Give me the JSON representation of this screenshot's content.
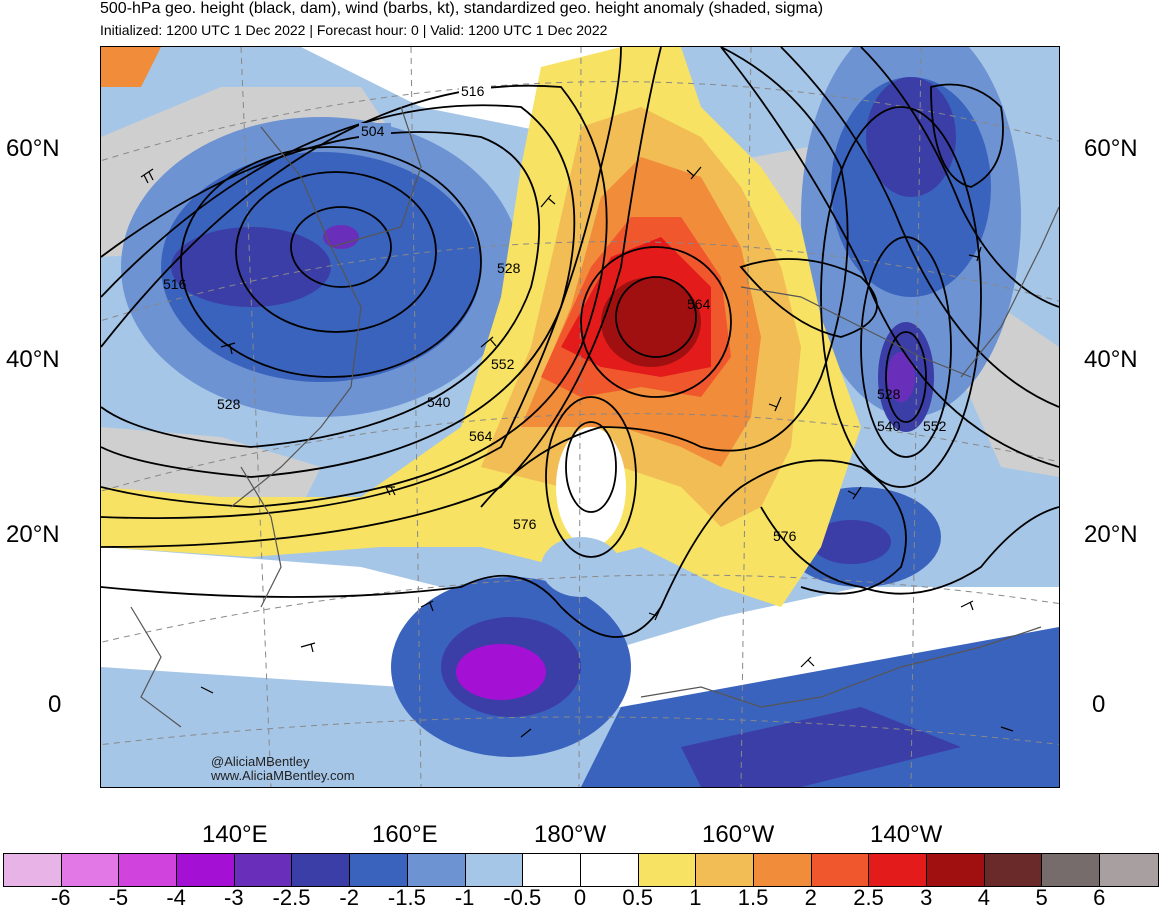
{
  "header": {
    "title": "500-hPa geo. height (black, dam), wind (barbs, kt), standardized geo. height anomaly (shaded, sigma)",
    "subtitle": "Initialized: 1200 UTC 1 Dec 2022 | Forecast hour: 0 | Valid: 1200 UTC 1 Dec 2022"
  },
  "axes": {
    "lat_left": [
      "60°N",
      "40°N",
      "20°N",
      "0"
    ],
    "lat_right": [
      "60°N",
      "40°N",
      "20°N",
      "0"
    ],
    "lon": [
      "140°E",
      "160°E",
      "180°W",
      "160°W",
      "140°W"
    ]
  },
  "contour_labels": [
    "516",
    "504",
    "516",
    "528",
    "528",
    "540",
    "552",
    "564",
    "564",
    "576",
    "576",
    "528",
    "540",
    "552"
  ],
  "credit": {
    "handle": "@AliciaMBentley",
    "site": "www.AliciaMBentley.com"
  },
  "colorbar": {
    "labels": [
      "-6",
      "-5",
      "-4",
      "-3",
      "-2.5",
      "-2",
      "-1.5",
      "-1",
      "-0.5",
      "0",
      "0.5",
      "1",
      "1.5",
      "2",
      "2.5",
      "3",
      "4",
      "5",
      "6"
    ],
    "colors": [
      "#e8b4e8",
      "#e178e6",
      "#d043dd",
      "#a411d4",
      "#6a2fba",
      "#3c3ea8",
      "#3a63bd",
      "#6d93d3",
      "#a6c6e8",
      "#ffffff",
      "#ffffff",
      "#f7e263",
      "#f2bd55",
      "#f08c3a",
      "#f0572d",
      "#e41b1b",
      "#a01010",
      "#6b2a2a",
      "#766c6c",
      "#a8a0a0"
    ]
  }
}
